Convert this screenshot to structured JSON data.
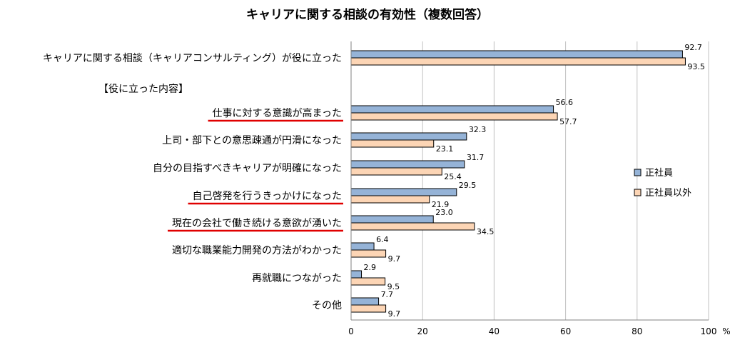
{
  "chart_data": {
    "type": "bar",
    "orientation": "horizontal",
    "title": "キャリアに関する相談の有効性（複数回答）",
    "unit": "%",
    "xlim": [
      0,
      100
    ],
    "xticks": [
      "0",
      "20",
      "40",
      "60",
      "80",
      "100"
    ],
    "grid": true,
    "legend_position": "right",
    "colors": {
      "regular": "#95b3d7",
      "non_regular": "#fcd5b5",
      "border": "#000000",
      "underline": "#e00000",
      "grid": "#c0c0c0"
    },
    "section_header": "【役に立った内容】",
    "categories": [
      "キャリアに関する相談（キャリアコンサルティング）が役に立った",
      "仕事に対する意識が高まった",
      "上司・部下との意思疎通が円滑になった",
      "自分の目指すべきキャリアが明確になった",
      "自己啓発を行うきっかけになった",
      "現在の会社で働き続ける意欲が湧いた",
      "適切な職業能力開発の方法がわかった",
      "再就職につながった",
      "その他"
    ],
    "underlined": [
      false,
      true,
      false,
      false,
      true,
      true,
      false,
      false,
      false
    ],
    "series": [
      {
        "name": "正社員",
        "values": [
          92.7,
          56.6,
          32.3,
          31.7,
          29.5,
          23.0,
          6.4,
          2.9,
          7.7
        ],
        "labels": [
          "92.7",
          "56.6",
          "32.3",
          "31.7",
          "29.5",
          "23.0",
          "6.4",
          "2.9",
          "7.7"
        ]
      },
      {
        "name": "正社員以外",
        "values": [
          93.5,
          57.7,
          23.1,
          25.4,
          21.9,
          34.5,
          9.7,
          9.5,
          9.7
        ],
        "labels": [
          "93.5",
          "57.7",
          "23.1",
          "25.4",
          "21.9",
          "34.5",
          "9.7",
          "9.5",
          "9.7"
        ]
      }
    ]
  }
}
